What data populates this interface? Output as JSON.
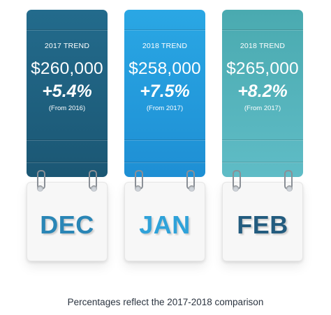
{
  "cards": [
    {
      "label": "2017 TREND",
      "amount": "$260,000",
      "percent": "+5.4%",
      "note": "(From 2016)",
      "month": "DEC",
      "colors": {
        "top": "#236b8c",
        "bottom": "#1b5774",
        "month": "#2a86b6"
      }
    },
    {
      "label": "2018 TREND",
      "amount": "$258,000",
      "percent": "+7.5%",
      "note": "(From 2017)",
      "month": "JAN",
      "colors": {
        "top": "#2aa7e4",
        "bottom": "#1e8fd4",
        "month": "#2fa2d9"
      }
    },
    {
      "label": "2018 TREND",
      "amount": "$265,000",
      "percent": "+8.2%",
      "note": "(From 2017)",
      "month": "FEB",
      "colors": {
        "top": "#4aaab0",
        "bottom": "#5fbcc6",
        "month": "#235c7f"
      }
    }
  ],
  "caption": "Percentages reflect the 2017-2018 comparison"
}
